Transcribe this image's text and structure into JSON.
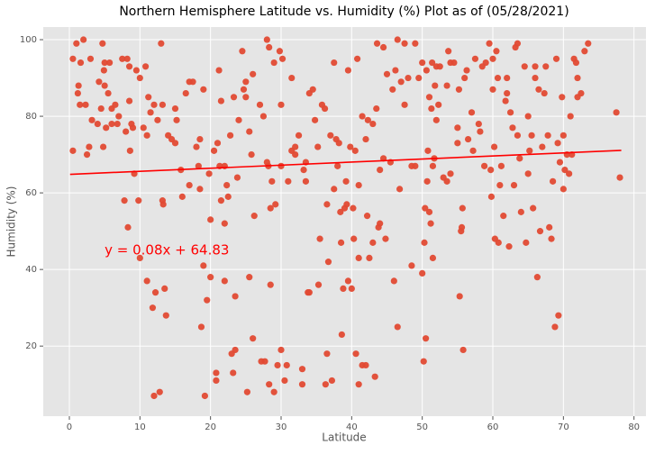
{
  "chart_data": {
    "type": "scatter",
    "title": "Northern Hemisphere Latitude vs. Humidity (%) Plot as of (05/28/2021)",
    "x_label": "Latitude",
    "y_label": "Humidity (%)",
    "xlim": [
      -3.7,
      81.7
    ],
    "ylim": [
      1.7,
      103.3
    ],
    "xticks": [
      0,
      10,
      20,
      30,
      40,
      50,
      60,
      70,
      80
    ],
    "yticks": [
      20,
      40,
      60,
      80,
      100
    ],
    "grid": true,
    "background": "#e5e5e5",
    "series": [
      {
        "color": "#e24a33",
        "x": [
          0.5,
          0.5,
          1,
          1.2,
          1.3,
          1.5,
          1.6,
          2,
          2.3,
          2.5,
          2.8,
          3,
          3.2,
          4,
          4.2,
          4.5,
          4.7,
          4.8,
          4.9,
          5,
          5,
          5.2,
          5.5,
          5.7,
          6,
          6,
          6.5,
          6.8,
          7,
          7.5,
          7.8,
          8,
          8.2,
          8.3,
          8.5,
          8.5,
          8.6,
          8.8,
          9,
          9.2,
          9.5,
          9.8,
          10,
          10,
          10.5,
          10.8,
          11,
          11,
          11.2,
          11.5,
          11.8,
          12,
          12,
          12.2,
          12.5,
          12.8,
          13,
          13.2,
          13.2,
          13.3,
          13.5,
          13.7,
          14,
          14.5,
          15,
          15,
          15.2,
          15.8,
          16,
          16.5,
          17,
          17,
          17.5,
          18,
          18.3,
          18.5,
          18.5,
          18.7,
          19,
          19,
          19.2,
          19.5,
          19.8,
          20,
          20,
          20.5,
          20.8,
          20.8,
          21,
          21.2,
          21.3,
          21.5,
          21.5,
          22,
          22,
          22,
          22.3,
          22.5,
          22.8,
          23,
          23.2,
          23.3,
          23.5,
          23.5,
          23.8,
          24,
          24.5,
          24.7,
          25,
          25,
          25.2,
          25.5,
          25.5,
          25.8,
          26,
          26,
          26.2,
          27,
          27.2,
          27.5,
          27.7,
          28,
          28,
          28.2,
          28.3,
          28.3,
          28.5,
          28.5,
          28.7,
          29,
          29,
          29.2,
          29.5,
          29.8,
          30,
          30,
          30,
          30.2,
          30.5,
          30.8,
          31,
          31.5,
          31.5,
          32,
          32,
          32.5,
          33,
          33,
          33.2,
          33.5,
          33.5,
          33.8,
          34,
          34,
          34.5,
          34.8,
          35.2,
          35.3,
          35.5,
          35.8,
          36.2,
          36.3,
          36.5,
          36.5,
          36.7,
          37,
          37.2,
          37.5,
          37.5,
          37.8,
          38,
          38.2,
          38.4,
          38.5,
          38.6,
          38.8,
          39,
          39.2,
          39.3,
          39.5,
          39.5,
          39.8,
          40,
          40.2,
          40.3,
          40.5,
          40.6,
          40.8,
          41,
          41,
          41,
          41.5,
          41.5,
          42,
          42,
          42.2,
          42.3,
          42.5,
          43,
          43,
          43.3,
          43.5,
          43.6,
          43.8,
          44,
          44,
          44.5,
          44.5,
          44.8,
          45,
          45.5,
          45.8,
          46,
          46.2,
          46.5,
          46.5,
          46.8,
          47,
          47.5,
          47.5,
          48,
          48.5,
          48.5,
          49,
          49,
          49.5,
          50,
          50,
          50.2,
          50.3,
          50.4,
          50.5,
          50.6,
          50.7,
          50.8,
          51,
          51,
          51.2,
          51.3,
          51.4,
          51.5,
          51.5,
          51.7,
          51.8,
          52,
          52,
          52.3,
          52.5,
          53,
          53.5,
          53.5,
          53.7,
          54,
          54,
          54.5,
          55,
          55,
          55.2,
          55.3,
          55.5,
          55.6,
          55.7,
          55.8,
          56,
          56.3,
          56.5,
          57,
          57.2,
          57.5,
          58,
          58.2,
          58.5,
          58.8,
          59,
          59.5,
          59.7,
          59.8,
          60,
          60,
          60.2,
          60.3,
          60.5,
          60.7,
          60.8,
          61,
          61.2,
          61.5,
          61.8,
          62,
          62,
          62.3,
          62.5,
          62.8,
          63,
          63.2,
          63.5,
          63.5,
          63.8,
          64,
          64.5,
          64.7,
          65,
          65,
          65.2,
          65.5,
          65.7,
          66,
          66,
          66.3,
          66.5,
          66.7,
          67,
          67.3,
          67.5,
          67.8,
          68,
          68.3,
          68.5,
          68.8,
          69,
          69.2,
          69.3,
          69.5,
          69.8,
          70,
          70,
          70.2,
          70.5,
          70.8,
          71,
          71.2,
          71.5,
          71.8,
          72,
          72,
          72.5,
          73,
          73.5,
          77.5,
          78
        ],
        "values": [
          95,
          71,
          99,
          86,
          88,
          83,
          94,
          100,
          83,
          70,
          72,
          95,
          79,
          78,
          89,
          82,
          99,
          72,
          92,
          88,
          94,
          77,
          86,
          94,
          78,
          82,
          83,
          78,
          80,
          95,
          58,
          76,
          95,
          51,
          93,
          84,
          71,
          78,
          77,
          65,
          92,
          58,
          43,
          90,
          77,
          93,
          37,
          75,
          85,
          81,
          30,
          7,
          83,
          34,
          79,
          8,
          99,
          58,
          83,
          57,
          35,
          28,
          75,
          74,
          73,
          82,
          79,
          66,
          59,
          86,
          62,
          89,
          89,
          72,
          67,
          61,
          74,
          25,
          41,
          87,
          7,
          32,
          65,
          53,
          38,
          71,
          11,
          13,
          73,
          92,
          67,
          58,
          84,
          67,
          52,
          37,
          62,
          59,
          75,
          18,
          13,
          85,
          19,
          33,
          64,
          79,
          97,
          87,
          89,
          85,
          8,
          38,
          76,
          70,
          91,
          22,
          54,
          83,
          16,
          80,
          16,
          100,
          68,
          67,
          10,
          98,
          56,
          36,
          63,
          8,
          94,
          57,
          15,
          97,
          19,
          83,
          67,
          95,
          11,
          15,
          63,
          71,
          90,
          72,
          70,
          75,
          10,
          14,
          66,
          63,
          68,
          34,
          34,
          86,
          87,
          79,
          72,
          36,
          48,
          83,
          82,
          10,
          18,
          57,
          42,
          75,
          11,
          94,
          61,
          74,
          67,
          73,
          55,
          47,
          23,
          35,
          56,
          63,
          57,
          92,
          37,
          72,
          35,
          56,
          48,
          71,
          18,
          95,
          10,
          43,
          62,
          15,
          80,
          15,
          74,
          54,
          79,
          43,
          47,
          78,
          12,
          82,
          99,
          51,
          66,
          52,
          98,
          69,
          48,
          91,
          68,
          87,
          37,
          92,
          25,
          100,
          61,
          89,
          83,
          99,
          90,
          67,
          41,
          67,
          99,
          90,
          94,
          39,
          16,
          47,
          56,
          22,
          92,
          63,
          71,
          85,
          55,
          52,
          82,
          94,
          43,
          67,
          69,
          88,
          79,
          93,
          83,
          93,
          64,
          88,
          63,
          97,
          65,
          94,
          94,
          73,
          77,
          87,
          33,
          50,
          51,
          56,
          19,
          90,
          92,
          74,
          81,
          71,
          95,
          78,
          76,
          93,
          67,
          94,
          99,
          66,
          59,
          87,
          95,
          72,
          48,
          97,
          90,
          47,
          62,
          67,
          54,
          84,
          86,
          90,
          46,
          81,
          77,
          62,
          98,
          99,
          75,
          69,
          55,
          93,
          47,
          65,
          80,
          71,
          75,
          56,
          93,
          90,
          38,
          87,
          50,
          72,
          86,
          93,
          75,
          51,
          48,
          63,
          25,
          95,
          73,
          28,
          68,
          85,
          61,
          75,
          66,
          70,
          65,
          80,
          70,
          95,
          94,
          90,
          85,
          86,
          97,
          99,
          81,
          64
        ]
      }
    ],
    "regression": {
      "color": "#ff0000",
      "x": [
        0.1,
        78.2
      ],
      "values": [
        64.84,
        71.09
      ]
    },
    "annotation": {
      "text": "y = 0.08x + 64.83",
      "x": 5,
      "y": 45,
      "color": "#ff0000"
    }
  }
}
